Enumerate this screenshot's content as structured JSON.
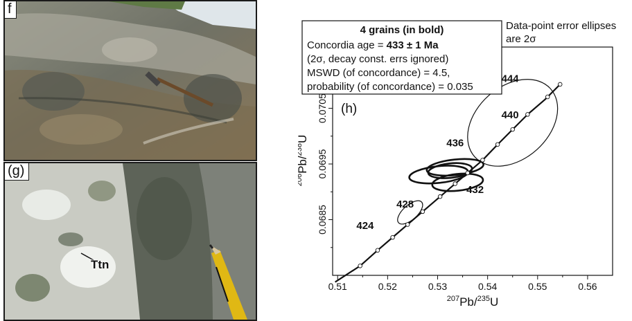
{
  "photos": {
    "f": {
      "label": "f"
    },
    "g": {
      "label": "(g)",
      "annotation": "Ttn"
    }
  },
  "chart_data": {
    "type": "scatter",
    "panel_label": "(h)",
    "xlabel_sup1": "207",
    "xlabel_mid": "Pb/",
    "xlabel_sup2": "235",
    "xlabel_end": "U",
    "ylabel_sup1": "206",
    "ylabel_mid": "Pb/",
    "ylabel_sup2": "238",
    "ylabel_end": "U",
    "xlim": [
      0.509,
      0.565
    ],
    "ylim": [
      0.0675,
      0.0716
    ],
    "x_ticks": [
      0.51,
      0.52,
      0.53,
      0.54,
      0.55,
      0.56
    ],
    "x_tick_labels": [
      "0.51",
      "0.52",
      "0.53",
      "0.54",
      "0.55",
      "0.56"
    ],
    "y_ticks": [
      0.0685,
      0.0695,
      0.0705
    ],
    "y_tick_labels": [
      "0.0685",
      "0.0695",
      "0.0705"
    ],
    "grid": false,
    "concordia": {
      "x": [
        0.5095,
        0.5145,
        0.518,
        0.5215,
        0.525,
        0.5285,
        0.532,
        0.5355,
        0.539,
        0.542,
        0.545,
        0.548,
        0.5515,
        0.5545
      ],
      "y": [
        0.06738,
        0.06767,
        0.06795,
        0.06822,
        0.06849,
        0.06876,
        0.06903,
        0.0693,
        0.06957,
        0.06985,
        0.07012,
        0.07039,
        0.07066,
        0.07093
      ]
    },
    "concordia_marker_x": [
      0.5145,
      0.518,
      0.521,
      0.524,
      0.527,
      0.5305,
      0.5335,
      0.536,
      0.539,
      0.542,
      0.545,
      0.548,
      0.552,
      0.5545
    ],
    "age_labels": [
      {
        "text": "424",
        "x": 0.5155,
        "y": 0.06833
      },
      {
        "text": "428",
        "x": 0.5235,
        "y": 0.06872
      },
      {
        "text": "432",
        "x": 0.5375,
        "y": 0.06898
      },
      {
        "text": "436",
        "x": 0.5335,
        "y": 0.06982
      },
      {
        "text": "440",
        "x": 0.5445,
        "y": 0.07032
      },
      {
        "text": "444",
        "x": 0.5445,
        "y": 0.07097
      }
    ],
    "ellipses": [
      {
        "cx": 0.5245,
        "cy": 0.06863,
        "rx": 0.0031,
        "ry": 0.00013,
        "bold": false
      },
      {
        "cx": 0.5302,
        "cy": 0.06931,
        "rx": 0.0059,
        "ry": 0.00015,
        "bold": true
      },
      {
        "cx": 0.5335,
        "cy": 0.06944,
        "rx": 0.0057,
        "ry": 0.00014,
        "bold": true
      },
      {
        "cx": 0.534,
        "cy": 0.06917,
        "rx": 0.0051,
        "ry": 0.00015,
        "bold": true
      },
      {
        "cx": 0.5325,
        "cy": 0.06938,
        "rx": 0.0044,
        "ry": 0.00013,
        "bold": true
      },
      {
        "cx": 0.545,
        "cy": 0.07024,
        "rx": 0.0102,
        "ry": 0.00065,
        "bold": false
      }
    ],
    "info_box": {
      "title": "4 grains (in bold)",
      "age_prefix": "Concordia age = ",
      "age_value": "433 ± 1 Ma",
      "line2": "(2σ, decay const. errs ignored)",
      "line3": "MSWD (of concordance) = 4.5,",
      "line4": "probability (of concordance) = 0.035"
    },
    "error_note": [
      "Data-point error ellipses",
      "are 2σ"
    ]
  }
}
